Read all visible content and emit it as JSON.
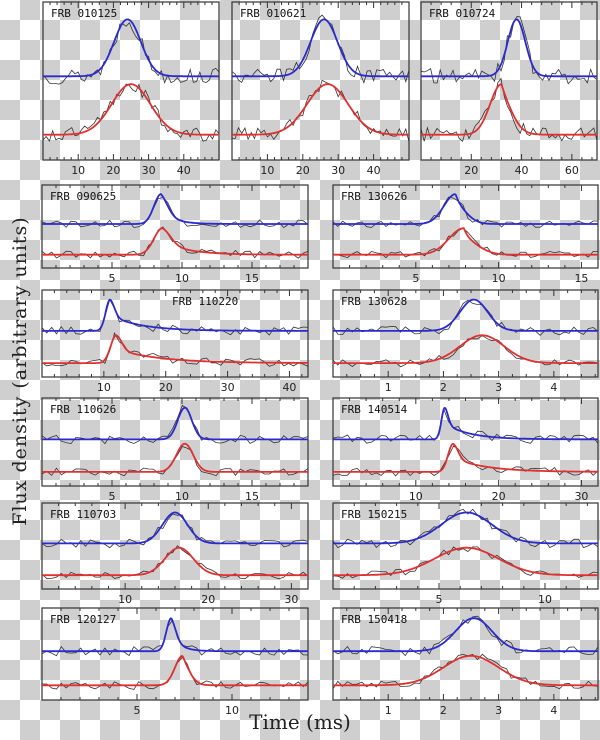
{
  "chart_data": {
    "type": "line",
    "xlabel": "Time (ms)",
    "ylabel": "Flux density (arbitrary units)",
    "series_colors": {
      "upper_fit": "#2a2ad0",
      "lower_fit": "#e03030",
      "data": "#333333"
    },
    "panels": [
      {
        "name": "FRB 010125",
        "xlim": [
          0,
          50
        ],
        "ticks": [
          10,
          20,
          30,
          40
        ],
        "upper": {
          "center": 24,
          "width": 3.8,
          "tail": 0
        },
        "lower": {
          "center": 25,
          "width": 5.5,
          "tail": 0
        }
      },
      {
        "name": "FRB 010621",
        "xlim": [
          0,
          50
        ],
        "ticks": [
          10,
          20,
          30,
          40
        ],
        "upper": {
          "center": 26,
          "width": 3.8,
          "tail": 0
        },
        "lower": {
          "center": 27,
          "width": 5.8,
          "tail": 0
        }
      },
      {
        "name": "FRB 010724",
        "xlim": [
          0,
          70
        ],
        "ticks": [
          20,
          40,
          60
        ],
        "upper": {
          "center": 38,
          "width": 3.5,
          "tail": 0
        },
        "lower": {
          "center": 32,
          "width": 4.5,
          "tail": 3
        }
      },
      {
        "name": "FRB 090625",
        "xlim": [
          0,
          19
        ],
        "ticks": [
          5,
          10,
          15
        ],
        "upper": {
          "center": 8.5,
          "width": 0.5,
          "tail": 0.9
        },
        "lower": {
          "center": 8.6,
          "width": 0.6,
          "tail": 1.8
        }
      },
      {
        "name": "FRB 110220",
        "xlim": [
          0,
          43
        ],
        "ticks": [
          10,
          20,
          30,
          40
        ],
        "upper": {
          "center": 11,
          "width": 0.7,
          "tail": 5
        },
        "lower": {
          "center": 12,
          "width": 0.9,
          "tail": 7
        }
      },
      {
        "name": "FRB 110626",
        "xlim": [
          0,
          19
        ],
        "ticks": [
          5,
          10,
          15
        ],
        "upper": {
          "center": 10.2,
          "width": 0.5,
          "tail": 0
        },
        "lower": {
          "center": 10.2,
          "width": 0.6,
          "tail": 0
        }
      },
      {
        "name": "FRB 110703",
        "xlim": [
          0,
          32
        ],
        "ticks": [
          10,
          20,
          30
        ],
        "upper": {
          "center": 16,
          "width": 1.5,
          "tail": 0
        },
        "lower": {
          "center": 16.5,
          "width": 1.7,
          "tail": 0
        }
      },
      {
        "name": "FRB 120127",
        "xlim": [
          0,
          14
        ],
        "ticks": [
          5,
          10
        ],
        "upper": {
          "center": 6.8,
          "width": 0.25,
          "tail": 0.5
        },
        "lower": {
          "center": 7.4,
          "width": 0.4,
          "tail": 0.3
        }
      },
      {
        "name": "FRB 130626",
        "xlim": [
          0,
          16
        ],
        "ticks": [
          5,
          10,
          15
        ],
        "upper": {
          "center": 7.4,
          "width": 0.7,
          "tail": 0.3
        },
        "lower": {
          "center": 7.9,
          "width": 0.9,
          "tail": 0.3
        }
      },
      {
        "name": "FRB 130628",
        "xlim": [
          0,
          4.8
        ],
        "ticks": [
          1,
          2,
          3,
          4
        ],
        "upper": {
          "center": 2.55,
          "width": 0.25,
          "tail": 0
        },
        "lower": {
          "center": 2.7,
          "width": 0.4,
          "tail": 0
        }
      },
      {
        "name": "FRB 140514",
        "xlim": [
          0,
          32
        ],
        "ticks": [
          10,
          20,
          30
        ],
        "upper": {
          "center": 13.5,
          "width": 0.4,
          "tail": 3
        },
        "lower": {
          "center": 14.5,
          "width": 0.6,
          "tail": 4
        }
      },
      {
        "name": "FRB 150215",
        "xlim": [
          0,
          12.5
        ],
        "ticks": [
          5,
          10
        ],
        "upper": {
          "center": 6.3,
          "width": 1.2,
          "tail": 0
        },
        "lower": {
          "center": 6.3,
          "width": 1.5,
          "tail": 0
        }
      },
      {
        "name": "FRB 150418",
        "xlim": [
          0,
          4.8
        ],
        "ticks": [
          1,
          2,
          3,
          4
        ],
        "upper": {
          "center": 2.55,
          "width": 0.33,
          "tail": 0
        },
        "lower": {
          "center": 2.5,
          "width": 0.5,
          "tail": 0
        }
      }
    ]
  }
}
